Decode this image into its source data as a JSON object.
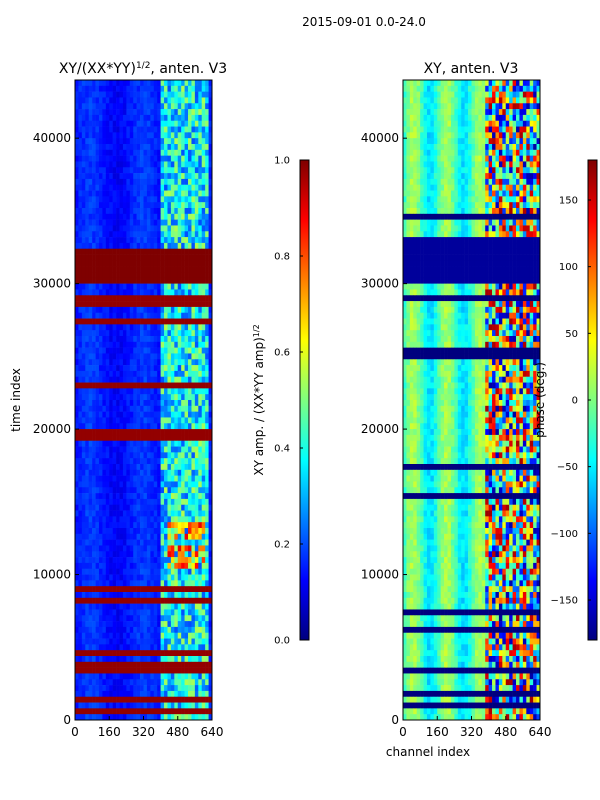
{
  "figure": {
    "suptitle": "2015-09-01 0.0-24.0",
    "colors": {
      "jet": [
        "#00007f",
        "#0000ff",
        "#007fff",
        "#00ffff",
        "#7fff7f",
        "#ffff00",
        "#ff7f00",
        "#ff0000",
        "#7f0000"
      ]
    }
  },
  "chart_data": [
    {
      "type": "heatmap",
      "title_main": "XY/(XX*YY)",
      "title_exp": "1/2",
      "title_rest": ", anten. V3",
      "xlabel": "",
      "ylabel": "time index",
      "xlim": [
        0,
        640
      ],
      "ylim": [
        0,
        44000
      ],
      "xticks": [
        0,
        160,
        320,
        480,
        640
      ],
      "yticks": [
        0,
        10000,
        20000,
        30000,
        40000
      ],
      "colorbar": {
        "label_main": "XY amp. / (XX*YY amp)",
        "label_exp": "1/2",
        "range": [
          0.0,
          1.0
        ],
        "ticks": [
          0.0,
          0.2,
          0.4,
          0.6,
          0.8,
          1.0
        ],
        "tick_labels": [
          "0.0",
          "0.2",
          "0.4",
          "0.6",
          "0.8",
          "1.0"
        ]
      },
      "description_values": {
        "base_level": 0.12,
        "band_high_time_range": [
          30000,
          32500
        ],
        "band_high_value": 1.0,
        "noisy_channel_range": [
          400,
          620
        ],
        "hotspot_time_ranges": [
          [
            10500,
            11800
          ],
          [
            12500,
            13500
          ]
        ],
        "hotspot_channel_range": [
          420,
          600
        ]
      }
    },
    {
      "type": "heatmap",
      "title": "XY, anten. V3",
      "xlabel": "channel index",
      "ylabel": "",
      "xlim": [
        0,
        640
      ],
      "ylim": [
        0,
        44000
      ],
      "xticks": [
        0,
        160,
        320,
        480,
        640
      ],
      "yticks": [
        0,
        10000,
        20000,
        30000,
        40000
      ],
      "colorbar": {
        "label": "phase (deg.)",
        "range": [
          -180,
          180
        ],
        "ticks": [
          -150,
          -100,
          -50,
          0,
          50,
          100,
          150
        ],
        "tick_labels": [
          "−150",
          "−100",
          "−50",
          "0",
          "50",
          "100",
          "150"
        ]
      },
      "description_values": {
        "base_level_deg": -20,
        "band_low_time_range": [
          30000,
          33000
        ],
        "band_low_value_deg": -170,
        "noisy_channel_range": [
          380,
          640
        ]
      }
    }
  ]
}
